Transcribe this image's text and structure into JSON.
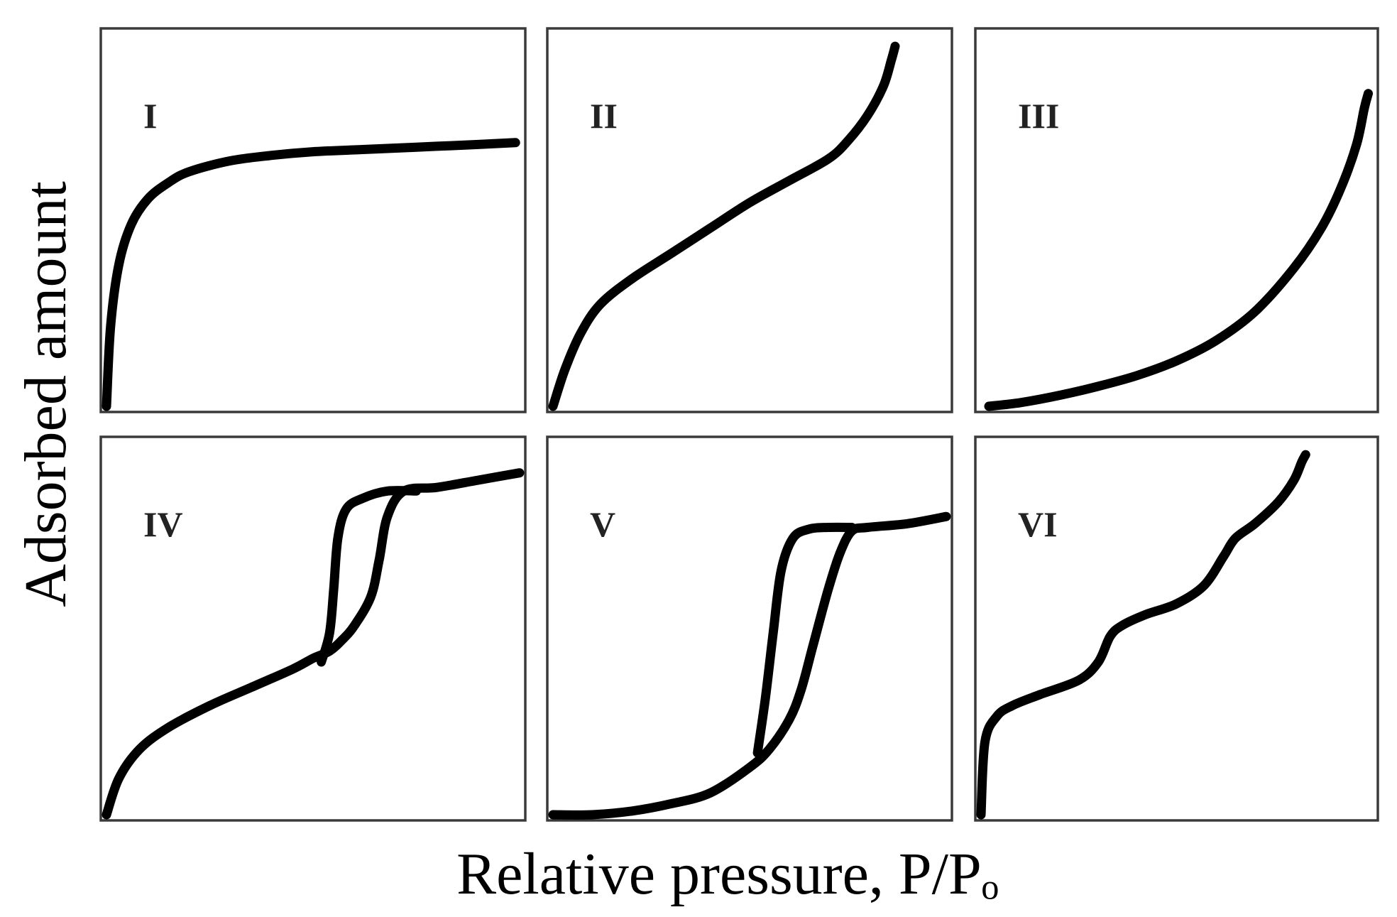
{
  "chart_data": {
    "type": "line",
    "xlabel": "Relative pressure, P/Pₒ",
    "ylabel": "Adsorbed amount",
    "panels": [
      {
        "label": "I",
        "series": [
          {
            "x": [
              0,
              0.01,
              0.03,
              0.06,
              0.1,
              0.15,
              0.2,
              0.3,
              0.4,
              0.5,
              0.6,
              0.7,
              0.8,
              0.9,
              0.99
            ],
            "y": [
              0,
              0.22,
              0.39,
              0.5,
              0.57,
              0.615,
              0.645,
              0.675,
              0.69,
              0.7,
              0.705,
              0.71,
              0.715,
              0.72,
              0.725
            ]
          }
        ]
      },
      {
        "label": "II",
        "series": [
          {
            "x": [
              0,
              0.03,
              0.07,
              0.12,
              0.2,
              0.3,
              0.4,
              0.5,
              0.6,
              0.7,
              0.75,
              0.8,
              0.84,
              0.86,
              0.87
            ],
            "y": [
              0,
              0.1,
              0.2,
              0.28,
              0.35,
              0.42,
              0.49,
              0.56,
              0.62,
              0.68,
              0.73,
              0.8,
              0.88,
              0.95,
              0.99
            ]
          }
        ]
      },
      {
        "label": "III",
        "series": [
          {
            "x": [
              0.02,
              0.1,
              0.2,
              0.3,
              0.4,
              0.5,
              0.6,
              0.7,
              0.8,
              0.87,
              0.92,
              0.96,
              0.98,
              0.99
            ],
            "y": [
              0,
              0.01,
              0.03,
              0.055,
              0.085,
              0.125,
              0.18,
              0.26,
              0.38,
              0.49,
              0.6,
              0.72,
              0.82,
              0.86
            ]
          }
        ]
      },
      {
        "label": "IV",
        "series": [
          {
            "name": "",
            "x": [
              0,
              0.03,
              0.08,
              0.15,
              0.25,
              0.35,
              0.45,
              0.5,
              0.54,
              0.57,
              0.6,
              0.64,
              0.66,
              0.68,
              0.72,
              0.8,
              0.9,
              1.0
            ],
            "y": [
              0,
              0.1,
              0.18,
              0.24,
              0.3,
              0.35,
              0.4,
              0.43,
              0.45,
              0.48,
              0.52,
              0.6,
              0.7,
              0.82,
              0.89,
              0.9,
              0.92,
              0.94
            ]
          },
          {
            "name": "",
            "x": [
              0.52,
              0.54,
              0.55,
              0.56,
              0.58,
              0.62,
              0.68,
              0.75
            ],
            "y": [
              0.42,
              0.5,
              0.62,
              0.76,
              0.84,
              0.87,
              0.89,
              0.89
            ]
          }
        ]
      },
      {
        "label": "V",
        "series": [
          {
            "name": "",
            "x": [
              0,
              0.1,
              0.2,
              0.3,
              0.4,
              0.5,
              0.55,
              0.6,
              0.63,
              0.66,
              0.7,
              0.73,
              0.76,
              0.8,
              0.9,
              1.0
            ],
            "y": [
              0,
              0.0,
              0.01,
              0.03,
              0.06,
              0.13,
              0.18,
              0.26,
              0.34,
              0.46,
              0.62,
              0.72,
              0.78,
              0.79,
              0.8,
              0.82
            ]
          },
          {
            "name": "",
            "x": [
              0.52,
              0.54,
              0.56,
              0.58,
              0.61,
              0.65,
              0.7,
              0.76
            ],
            "y": [
              0.17,
              0.32,
              0.5,
              0.67,
              0.76,
              0.785,
              0.79,
              0.79
            ]
          }
        ]
      },
      {
        "label": "VI",
        "series": [
          {
            "x": [
              0,
              0.01,
              0.04,
              0.08,
              0.15,
              0.25,
              0.3,
              0.33,
              0.36,
              0.42,
              0.5,
              0.57,
              0.62,
              0.65,
              0.7,
              0.76,
              0.8,
              0.82,
              0.83
            ],
            "y": [
              0,
              0.2,
              0.27,
              0.3,
              0.33,
              0.37,
              0.42,
              0.49,
              0.52,
              0.55,
              0.58,
              0.63,
              0.71,
              0.76,
              0.8,
              0.86,
              0.92,
              0.97,
              0.99
            ]
          }
        ]
      }
    ]
  }
}
